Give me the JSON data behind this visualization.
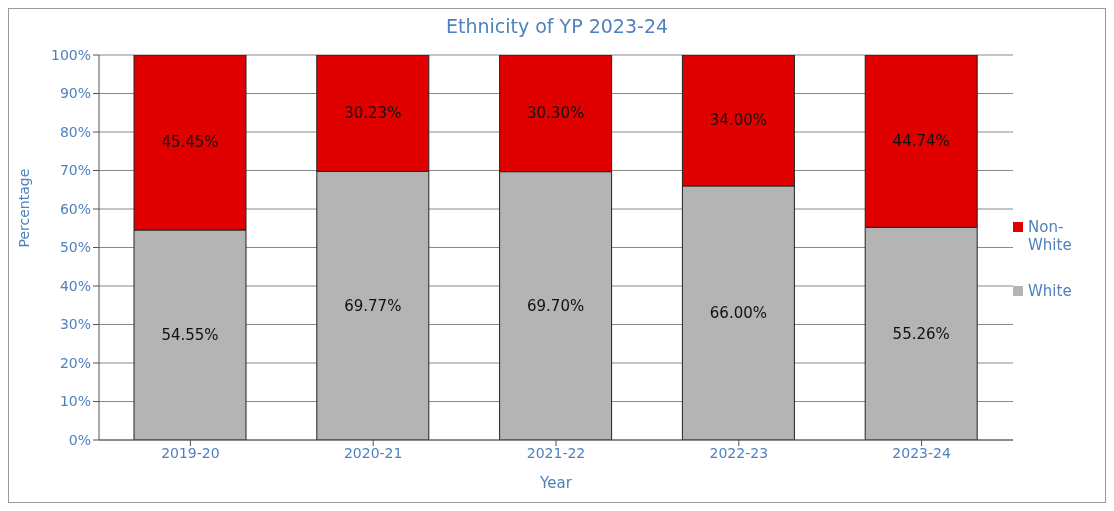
{
  "chart_data": {
    "type": "bar",
    "title": "Ethnicity of YP 2023-24",
    "xlabel": "Year",
    "ylabel": "Percentage",
    "categories": [
      "2019-20",
      "2020-21",
      "2021-22",
      "2022-23",
      "2023-24"
    ],
    "stacked": true,
    "series": [
      {
        "name": "White",
        "color": "#b4b4b4",
        "values": [
          54.55,
          69.77,
          69.7,
          66.0,
          55.26
        ],
        "value_labels": [
          "54.55%",
          "69.77%",
          "69.70%",
          "66.00%",
          "55.26%"
        ]
      },
      {
        "name": "Non-White",
        "color": "#e00000",
        "values": [
          45.45,
          30.23,
          30.3,
          34.0,
          44.74
        ],
        "value_labels": [
          "45.45%",
          "30.23%",
          "30.30%",
          "34.00%",
          "44.74%"
        ]
      }
    ],
    "ylim": [
      0,
      100
    ],
    "yticks": [
      {
        "value": 0,
        "label": "0%"
      },
      {
        "value": 10,
        "label": "10%"
      },
      {
        "value": 20,
        "label": "20%"
      },
      {
        "value": 30,
        "label": "30%"
      },
      {
        "value": 40,
        "label": "40%"
      },
      {
        "value": 50,
        "label": "50%"
      },
      {
        "value": 60,
        "label": "60%"
      },
      {
        "value": 70,
        "label": "70%"
      },
      {
        "value": 80,
        "label": "80%"
      },
      {
        "value": 90,
        "label": "90%"
      },
      {
        "value": 100,
        "label": "100%"
      }
    ],
    "grid": "y",
    "legend": "right"
  }
}
